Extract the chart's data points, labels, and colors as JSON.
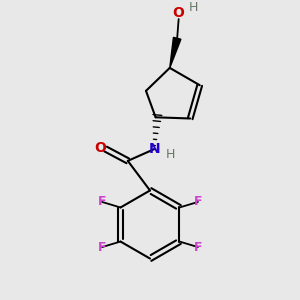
{
  "bg_color": "#e8e8e8",
  "colors": {
    "C": "#000000",
    "O": "#cc0000",
    "N": "#2200cc",
    "F": "#cc44cc",
    "H": "#667766",
    "bond": "#000000"
  },
  "dbo": 0.009
}
